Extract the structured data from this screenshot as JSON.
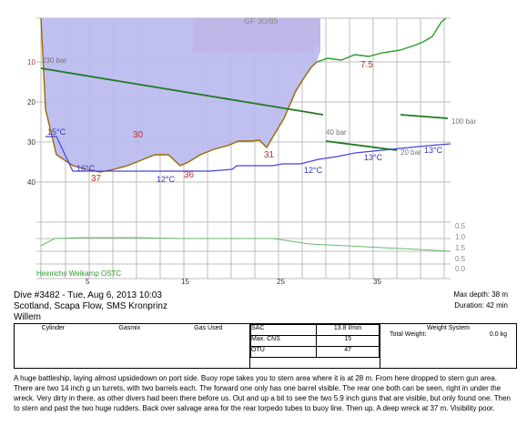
{
  "profile": {
    "gf_label": "GF 30/85",
    "x_ticks": [
      "5",
      "15",
      "25",
      "35"
    ],
    "y_ticks": [
      "10",
      "20",
      "30",
      "40"
    ],
    "tank_ticks": [
      "0.5",
      "1.0",
      "1.5",
      "0.5",
      "0.0"
    ],
    "footer": "Heinrichs Weikamp OSTC",
    "depth_labels": [
      "37",
      "30",
      "36",
      "31",
      "7.5"
    ],
    "temp_labels": [
      "15°C",
      "16°C",
      "12°C",
      "12°C",
      "13°C",
      "13°C"
    ],
    "pressure_labels": [
      "230 bar",
      "40 bar",
      "20 bar",
      "100 bar"
    ],
    "colors": {
      "depth_line": "#9a6a00",
      "depth_fill": "#b8b8ee",
      "ceiling": "#f3a0a0",
      "pressure": "#207a20",
      "temp": "#4444dd",
      "grid": "#bdbdbd"
    }
  },
  "dive": {
    "title": "Dive #3482 - Tue, Aug 6, 2013   10:03",
    "location": "Scotland, Scapa Flow, SMS Kronprinz",
    "buddy": "Willem",
    "max_depth": "Max depth: 38 m",
    "duration": "Duration: 42 min"
  },
  "gear": {
    "head_cylinder": "Cylinder",
    "head_gasmix": "Gasmix",
    "head_gasused": "Gas Used",
    "sac_label": "SAC",
    "sac_value": "13.8 l/min",
    "cns_label": "Max. CNS",
    "cns_value": "15",
    "otu_label": "OTU",
    "otu_value": "47",
    "weight_head": "Weight System",
    "weight_label": "Total Weight:",
    "weight_value": "0.0 kg"
  },
  "notes": "A huge battleship, laying almost upsidedown on port side. Buoy rope takes you to stern area where it is at 28 m. From here dropped to stern gun area. There are two 14 inch g un turrets, with two barrels each. The forward one only has one barrel visible. The rear one both can be seen, right in under the wreck. Very dirty in there, as other divers had been there before us. Out and up a bit to see the two 5.9 inch guns that are visible, but only found one. Then to stern and past the two huge rudders. Back over salvage area for the rear torpedo tubes to buoy line. Then up. A deep wreck at 37 m. Visibility poor."
}
